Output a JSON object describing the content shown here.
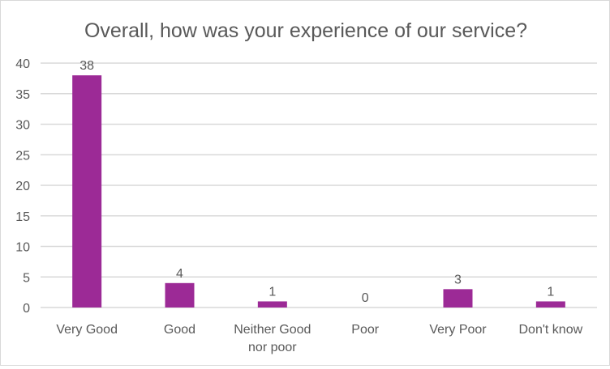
{
  "chart_data": {
    "type": "bar",
    "title": "Overall, how was your experience of our service?",
    "categories": [
      "Very Good",
      "Good",
      "Neither Good nor poor",
      "Poor",
      "Very Poor",
      "Don't know"
    ],
    "category_lines": [
      [
        "Very Good"
      ],
      [
        "Good"
      ],
      [
        "Neither Good",
        "nor poor"
      ],
      [
        "Poor"
      ],
      [
        "Very Poor"
      ],
      [
        "Don't know"
      ]
    ],
    "values": [
      38,
      4,
      1,
      0,
      3,
      1
    ],
    "xlabel": "",
    "ylabel": "",
    "ylim": [
      0,
      40
    ],
    "yticks": [
      0,
      5,
      10,
      15,
      20,
      25,
      30,
      35,
      40
    ],
    "grid": true,
    "data_labels": true,
    "bar_color": "#9c2a96",
    "grid_color": "#d9d9d9"
  }
}
